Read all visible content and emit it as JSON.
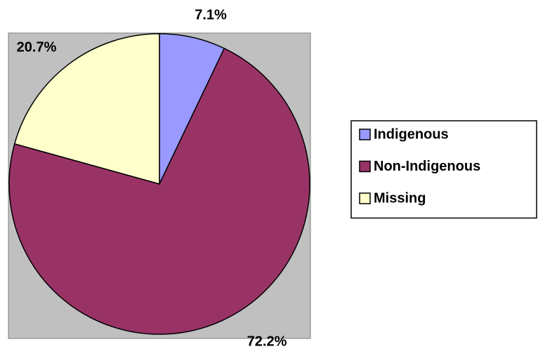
{
  "chart_data": {
    "type": "pie",
    "categories": [
      "Indigenous",
      "Non-Indigenous",
      "Missing"
    ],
    "values": [
      7.1,
      72.2,
      20.7
    ],
    "value_labels": [
      "7.1%",
      "72.2%",
      "20.7%"
    ],
    "colors": [
      "#9999ff",
      "#993366",
      "#ffffcc"
    ],
    "legend": "right"
  }
}
